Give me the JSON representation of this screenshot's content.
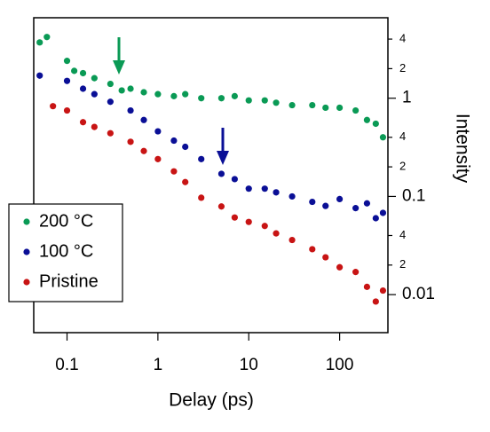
{
  "chart_data": {
    "type": "scatter",
    "x_label": "Delay (ps)",
    "y_label": "Intensity",
    "xscale": "log",
    "yscale": "log",
    "legend": "lower left",
    "y_axis_side": "right",
    "xlim": [
      0.043,
      340
    ],
    "ylim": [
      0.0041,
      6.6
    ],
    "xticks": [
      0.1,
      1,
      10,
      100
    ],
    "yticks": [
      {
        "value": 0.02,
        "label": "2"
      },
      {
        "value": 0.04,
        "label": "4"
      },
      0.1,
      {
        "value": 0.2,
        "label": "2"
      },
      {
        "value": 0.4,
        "label": "4"
      },
      1,
      {
        "value": 2,
        "label": "2"
      },
      {
        "value": 4,
        "label": "4"
      },
      0.01
    ],
    "series": [
      {
        "name": "200 °C",
        "color": "#0a9a55",
        "x": [
          0.05,
          0.06,
          0.1,
          0.12,
          0.15,
          0.2,
          0.3,
          0.4,
          0.5,
          0.7,
          1,
          1.5,
          2,
          3,
          5,
          7,
          10,
          15,
          20,
          30,
          50,
          70,
          100,
          150,
          200,
          250,
          300
        ],
        "values": [
          3.7,
          4.2,
          2.4,
          1.9,
          1.8,
          1.6,
          1.4,
          1.2,
          1.25,
          1.15,
          1.1,
          1.05,
          1.1,
          1.0,
          1.0,
          1.05,
          0.95,
          0.95,
          0.9,
          0.85,
          0.85,
          0.8,
          0.8,
          0.75,
          0.6,
          0.55,
          0.4
        ]
      },
      {
        "name": "100 °C",
        "color": "#0a0f96",
        "x": [
          0.05,
          0.1,
          0.15,
          0.2,
          0.3,
          0.5,
          0.7,
          1,
          1.5,
          2,
          3,
          5,
          7,
          10,
          15,
          20,
          30,
          50,
          70,
          100,
          150,
          200,
          250,
          300
        ],
        "values": [
          1.7,
          1.5,
          1.25,
          1.1,
          0.92,
          0.75,
          0.6,
          0.46,
          0.37,
          0.32,
          0.24,
          0.17,
          0.15,
          0.12,
          0.12,
          0.11,
          0.1,
          0.088,
          0.08,
          0.094,
          0.076,
          0.085,
          0.06,
          0.068
        ]
      },
      {
        "name": "Pristine",
        "color": "#c81414",
        "x": [
          0.07,
          0.1,
          0.15,
          0.2,
          0.3,
          0.5,
          0.7,
          1,
          1.5,
          2,
          3,
          5,
          7,
          10,
          15,
          20,
          30,
          50,
          70,
          100,
          150,
          200,
          250,
          300
        ],
        "values": [
          0.83,
          0.75,
          0.57,
          0.51,
          0.44,
          0.36,
          0.29,
          0.24,
          0.18,
          0.14,
          0.097,
          0.079,
          0.061,
          0.055,
          0.05,
          0.042,
          0.036,
          0.029,
          0.024,
          0.019,
          0.017,
          0.012,
          0.0085,
          0.011
        ]
      }
    ]
  }
}
